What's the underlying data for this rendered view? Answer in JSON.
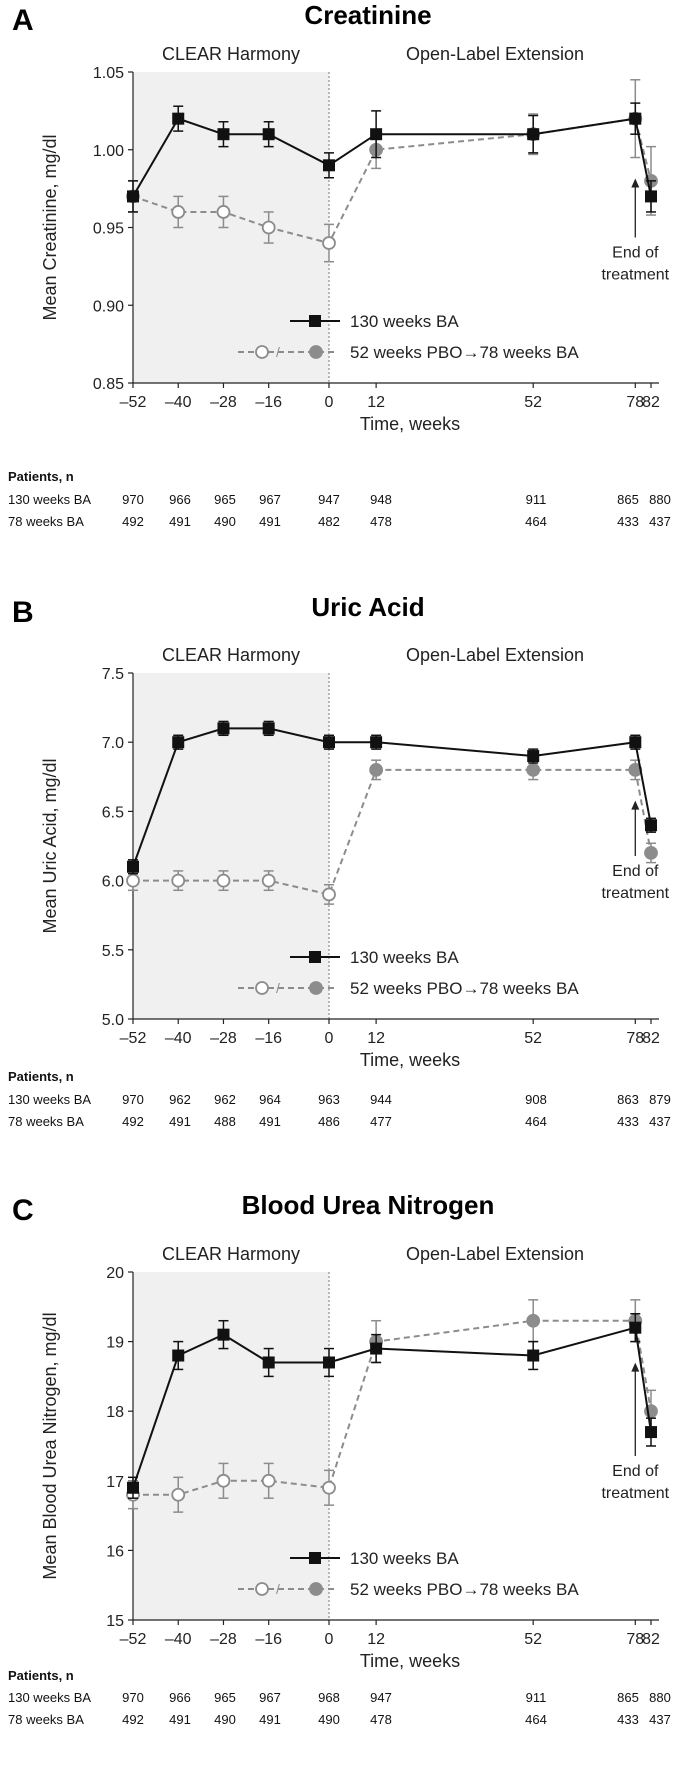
{
  "chart_data": [
    {
      "panel_letter": "A",
      "type": "line",
      "title": "Creatinine",
      "ylabel": "Mean Creatinine, mg/dl",
      "xlabel": "Time, weeks",
      "ylim": [
        0.85,
        1.05
      ],
      "yticks": [
        0.85,
        0.9,
        0.95,
        1.0,
        1.05
      ],
      "ytick_labels": [
        "0.85",
        "0.90",
        "0.95",
        "1.00",
        "1.05"
      ],
      "x": [
        -52,
        -40,
        -28,
        -16,
        0,
        12,
        52,
        78,
        82
      ],
      "x_labels": [
        "–52",
        "–40",
        "–28",
        "–16",
        "0",
        "12",
        "52",
        "78",
        "82"
      ],
      "region_left": "CLEAR Harmony",
      "region_right": "Open-Label Extension",
      "annotation": [
        "End of",
        "treatment"
      ],
      "series": [
        {
          "name": "130 weeks BA",
          "values": [
            0.97,
            1.02,
            1.01,
            1.01,
            0.99,
            1.01,
            1.01,
            1.02,
            0.97
          ],
          "errors": [
            0.01,
            0.008,
            0.008,
            0.008,
            0.008,
            0.015,
            0.012,
            0.01,
            0.01
          ]
        },
        {
          "name": "52 weeks PBO→78 weeks BA",
          "values": [
            0.97,
            0.96,
            0.96,
            0.95,
            0.94,
            1.0,
            1.01,
            1.02,
            0.98
          ],
          "errors": [
            0.01,
            0.01,
            0.01,
            0.01,
            0.012,
            0.012,
            0.013,
            0.025,
            0.022
          ]
        }
      ],
      "legend": [
        "130 weeks BA",
        "52 weeks PBO→78 weeks BA"
      ],
      "patients_header": "Patients, n",
      "patients": [
        {
          "label": "130 weeks BA",
          "counts": [
            "970",
            "966",
            "965",
            "967",
            "947",
            "948",
            "911",
            "865",
            "880"
          ]
        },
        {
          "label": "78 weeks BA",
          "counts": [
            "492",
            "491",
            "490",
            "491",
            "482",
            "478",
            "464",
            "433",
            "437"
          ]
        }
      ]
    },
    {
      "panel_letter": "B",
      "type": "line",
      "title": "Uric Acid",
      "ylabel": "Mean Uric Acid, mg/dl",
      "xlabel": "Time, weeks",
      "ylim": [
        5.0,
        7.5
      ],
      "yticks": [
        5.0,
        5.5,
        6.0,
        6.5,
        7.0,
        7.5
      ],
      "ytick_labels": [
        "5.0",
        "5.5",
        "6.0",
        "6.5",
        "7.0",
        "7.5"
      ],
      "x": [
        -52,
        -40,
        -28,
        -16,
        0,
        12,
        52,
        78,
        82
      ],
      "x_labels": [
        "–52",
        "–40",
        "–28",
        "–16",
        "0",
        "12",
        "52",
        "78",
        "82"
      ],
      "region_left": "CLEAR Harmony",
      "region_right": "Open-Label Extension",
      "annotation": [
        "End of",
        "treatment"
      ],
      "series": [
        {
          "name": "130 weeks BA",
          "values": [
            6.1,
            7.0,
            7.1,
            7.1,
            7.0,
            7.0,
            6.9,
            7.0,
            6.4
          ],
          "errors": [
            0.05,
            0.05,
            0.05,
            0.05,
            0.05,
            0.05,
            0.05,
            0.05,
            0.05
          ]
        },
        {
          "name": "52 weeks PBO→78 weeks BA",
          "values": [
            6.0,
            6.0,
            6.0,
            6.0,
            5.9,
            6.8,
            6.8,
            6.8,
            6.2
          ],
          "errors": [
            0.07,
            0.07,
            0.07,
            0.07,
            0.07,
            0.07,
            0.07,
            0.07,
            0.07
          ]
        }
      ],
      "legend": [
        "130 weeks BA",
        "52 weeks PBO→78 weeks BA"
      ],
      "patients_header": "Patients, n",
      "patients": [
        {
          "label": "130 weeks BA",
          "counts": [
            "970",
            "962",
            "962",
            "964",
            "963",
            "944",
            "908",
            "863",
            "879"
          ]
        },
        {
          "label": "78 weeks BA",
          "counts": [
            "492",
            "491",
            "488",
            "491",
            "486",
            "477",
            "464",
            "433",
            "437"
          ]
        }
      ]
    },
    {
      "panel_letter": "C",
      "type": "line",
      "title": "Blood Urea Nitrogen",
      "ylabel": "Mean Blood Urea Nitrogen, mg/dl",
      "xlabel": "Time, weeks",
      "ylim": [
        15,
        20
      ],
      "yticks": [
        15,
        16,
        17,
        18,
        19,
        20
      ],
      "ytick_labels": [
        "15",
        "16",
        "17",
        "18",
        "19",
        "20"
      ],
      "x": [
        -52,
        -40,
        -28,
        -16,
        0,
        12,
        52,
        78,
        82
      ],
      "x_labels": [
        "–52",
        "–40",
        "–28",
        "–16",
        "0",
        "12",
        "52",
        "78",
        "82"
      ],
      "region_left": "CLEAR Harmony",
      "region_right": "Open-Label Extension",
      "annotation": [
        "End of",
        "treatment"
      ],
      "series": [
        {
          "name": "130 weeks BA",
          "values": [
            16.9,
            18.8,
            19.1,
            18.7,
            18.7,
            18.9,
            18.8,
            19.2,
            17.7
          ],
          "errors": [
            0.15,
            0.2,
            0.2,
            0.2,
            0.2,
            0.2,
            0.2,
            0.2,
            0.2
          ]
        },
        {
          "name": "52 weeks PBO→78 weeks BA",
          "values": [
            16.8,
            16.8,
            17.0,
            17.0,
            16.9,
            19.0,
            19.3,
            19.3,
            18.0
          ],
          "errors": [
            0.2,
            0.25,
            0.25,
            0.25,
            0.25,
            0.3,
            0.3,
            0.3,
            0.3
          ]
        }
      ],
      "legend": [
        "130 weeks BA",
        "52 weeks PBO→78 weeks BA"
      ],
      "patients_header": "Patients, n",
      "patients": [
        {
          "label": "130 weeks BA",
          "counts": [
            "970",
            "966",
            "965",
            "967",
            "968",
            "947",
            "911",
            "865",
            "880"
          ]
        },
        {
          "label": "78 weeks BA",
          "counts": [
            "492",
            "491",
            "490",
            "491",
            "490",
            "478",
            "464",
            "433",
            "437"
          ]
        }
      ]
    }
  ],
  "colors": {
    "series_a": "#111111",
    "series_b": "#8c8c8c",
    "shade": "#f0f0f0",
    "axis": "#222222"
  }
}
